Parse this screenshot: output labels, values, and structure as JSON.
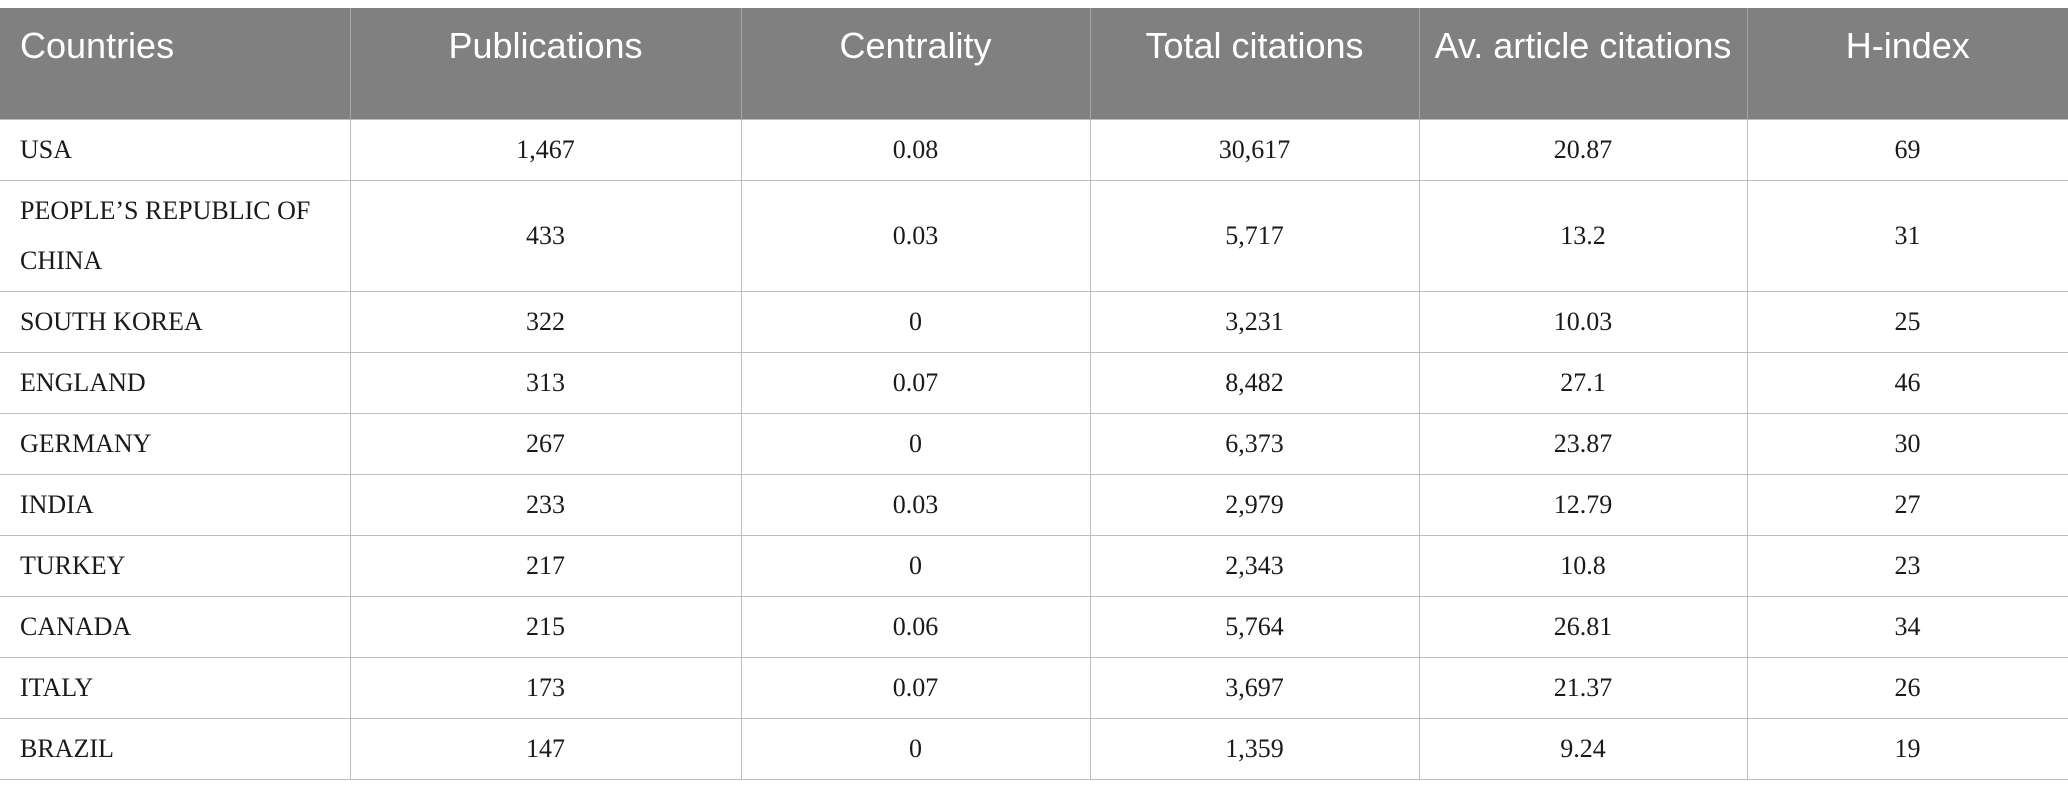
{
  "table": {
    "headers": [
      "Countries",
      "Publications",
      "Centrality",
      "Total citations",
      "Av. article citations",
      "H-index"
    ],
    "rows": [
      [
        "USA",
        "1,467",
        "0.08",
        "30,617",
        "20.87",
        "69"
      ],
      [
        "PEOPLE’S REPUBLIC OF CHINA",
        "433",
        "0.03",
        "5,717",
        "13.2",
        "31"
      ],
      [
        "SOUTH KOREA",
        "322",
        "0",
        "3,231",
        "10.03",
        "25"
      ],
      [
        "ENGLAND",
        "313",
        "0.07",
        "8,482",
        "27.1",
        "46"
      ],
      [
        "GERMANY",
        "267",
        "0",
        "6,373",
        "23.87",
        "30"
      ],
      [
        "INDIA",
        "233",
        "0.03",
        "2,979",
        "12.79",
        "27"
      ],
      [
        "TURKEY",
        "217",
        "0",
        "2,343",
        "10.8",
        "23"
      ],
      [
        "CANADA",
        "215",
        "0.06",
        "5,764",
        "26.81",
        "34"
      ],
      [
        "ITALY",
        "173",
        "0.07",
        "3,697",
        "21.37",
        "26"
      ],
      [
        "BRAZIL",
        "147",
        "0",
        "1,359",
        "9.24",
        "19"
      ]
    ]
  },
  "colors": {
    "header_bg": "#808080",
    "header_text": "#ffffff",
    "grid": "#bdbdbd"
  }
}
